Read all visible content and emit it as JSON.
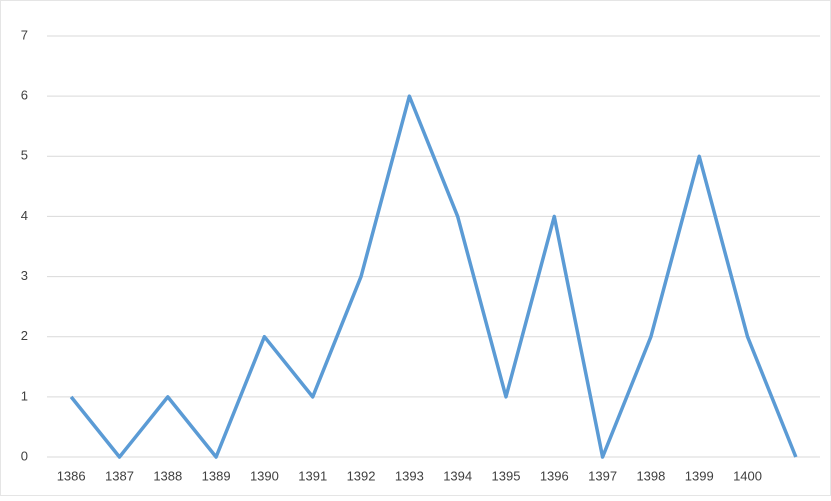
{
  "chart_data": {
    "type": "line",
    "categories": [
      "1386",
      "1387",
      "1388",
      "1389",
      "1390",
      "1391",
      "1392",
      "1393",
      "1394",
      "1395",
      "1396",
      "1397",
      "1398",
      "1399",
      "1400",
      null
    ],
    "values": [
      1,
      0,
      1,
      0,
      2,
      1,
      3,
      6,
      4,
      1,
      4,
      0,
      2,
      5,
      2,
      0
    ],
    "color": "#5b9bd5",
    "ylim": [
      0,
      7
    ],
    "yticks": [
      0,
      1,
      2,
      3,
      4,
      5,
      6,
      7
    ],
    "grid": true
  }
}
